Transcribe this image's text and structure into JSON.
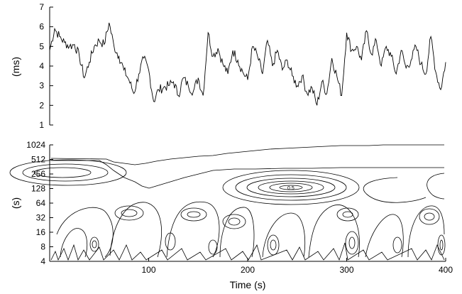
{
  "chart_data": [
    {
      "type": "line",
      "title": "",
      "xlabel": "",
      "ylabel": "(ms)",
      "xlim": [
        0,
        400
      ],
      "ylim": [
        1,
        7
      ],
      "yticks": [
        1,
        2,
        3,
        4,
        5,
        6,
        7
      ],
      "grid": false,
      "series": [
        {
          "x": [
            0,
            5,
            10,
            15,
            20,
            25,
            30,
            35,
            40,
            45,
            50,
            55,
            60,
            65,
            70,
            75,
            80,
            85,
            90,
            95,
            100,
            105,
            110,
            115,
            120,
            125,
            130,
            135,
            140,
            145,
            150,
            155,
            160,
            165,
            170,
            175,
            180,
            185,
            190,
            195,
            200,
            205,
            210,
            215,
            220,
            225,
            230,
            235,
            240,
            245,
            250,
            255,
            260,
            265,
            270,
            275,
            280,
            285,
            290,
            295,
            300,
            305,
            310,
            315,
            320,
            325,
            330,
            335,
            340,
            345,
            350,
            355,
            360,
            365,
            370,
            375,
            380,
            385,
            390,
            395,
            400
          ],
          "values": [
            4.8,
            5.9,
            5.5,
            5.2,
            5.0,
            5.1,
            4.5,
            3.4,
            4.2,
            5.0,
            5.3,
            5.1,
            6.2,
            5.0,
            4.5,
            3.8,
            3.3,
            2.6,
            3.6,
            4.4,
            3.8,
            2.2,
            2.8,
            2.9,
            3.0,
            3.2,
            2.5,
            3.4,
            3.0,
            2.7,
            3.4,
            2.5,
            5.7,
            4.5,
            4.9,
            4.1,
            3.6,
            4.8,
            4.3,
            3.7,
            3.3,
            5.0,
            4.5,
            3.6,
            5.3,
            4.0,
            4.8,
            3.8,
            4.3,
            3.5,
            3.0,
            3.5,
            2.6,
            2.9,
            2.0,
            3.2,
            2.6,
            4.4,
            3.5,
            2.5,
            5.7,
            4.8,
            5.0,
            4.3,
            5.8,
            4.6,
            5.3,
            4.0,
            5.0,
            4.5,
            3.6,
            4.8,
            3.9,
            4.3,
            5.0,
            4.1,
            3.6,
            5.5,
            3.7,
            2.8,
            4.2
          ]
        }
      ]
    },
    {
      "type": "contour",
      "title": "",
      "xlabel": "Time (s)",
      "ylabel": "(s)",
      "xlim": [
        0,
        400
      ],
      "xticks": [
        100,
        200,
        300,
        400
      ],
      "yscale": "log2",
      "ylim": [
        4,
        1024
      ],
      "yticks": [
        4,
        8,
        16,
        32,
        64,
        128,
        256,
        512,
        1024
      ],
      "grid": false,
      "annotations": [
        {
          "text": "0.5",
          "x": 245,
          "y": 100
        }
      ]
    }
  ]
}
